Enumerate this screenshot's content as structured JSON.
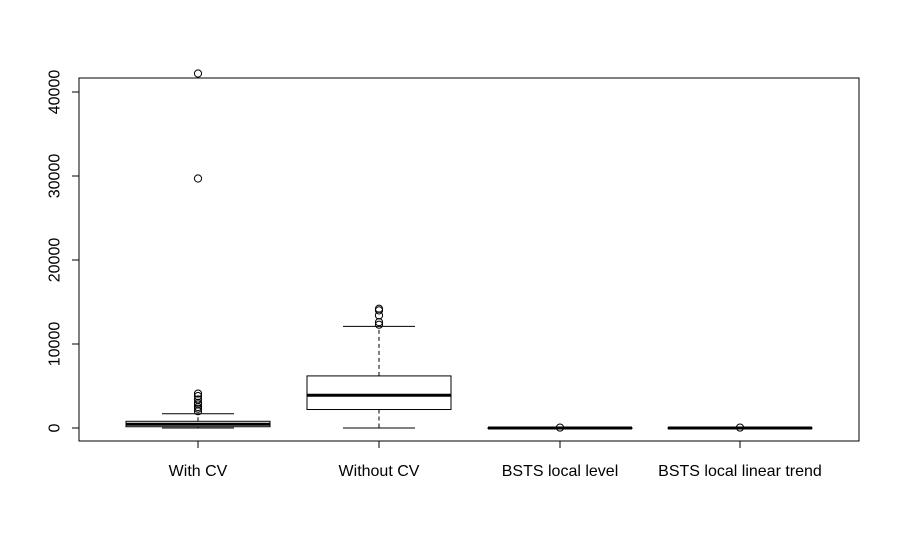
{
  "chart_data": {
    "type": "boxplot",
    "title": "",
    "xlabel": "",
    "ylabel": "",
    "ylim": [
      -1600,
      45800
    ],
    "yticks": [
      0,
      10000,
      20000,
      30000,
      40000
    ],
    "ytick_labels": [
      "0",
      "10000",
      "20000",
      "30000",
      "40000"
    ],
    "categories": [
      "With CV",
      "Without CV",
      "BSTS local level",
      "BSTS local linear trend"
    ],
    "series": [
      {
        "category": "With CV",
        "whisker_low": 0,
        "q1": 150,
        "median": 450,
        "q3": 800,
        "whisker_high": 1700,
        "outliers": [
          2000,
          2300,
          2500,
          2800,
          3000,
          3400,
          3800,
          4100,
          29700,
          42200
        ]
      },
      {
        "category": "Without CV",
        "whisker_low": 0,
        "q1": 2200,
        "median": 3900,
        "q3": 6200,
        "whisker_high": 12100,
        "outliers": [
          12300,
          12600,
          13400,
          14000,
          14200
        ]
      },
      {
        "category": "BSTS local level",
        "whisker_low": 0,
        "q1": 0,
        "median": 0,
        "q3": 0,
        "whisker_high": 0,
        "outliers": [
          50
        ]
      },
      {
        "category": "BSTS local linear trend",
        "whisker_low": 0,
        "q1": 0,
        "median": 0,
        "q3": 0,
        "whisker_high": 0,
        "outliers": [
          50
        ]
      }
    ]
  }
}
